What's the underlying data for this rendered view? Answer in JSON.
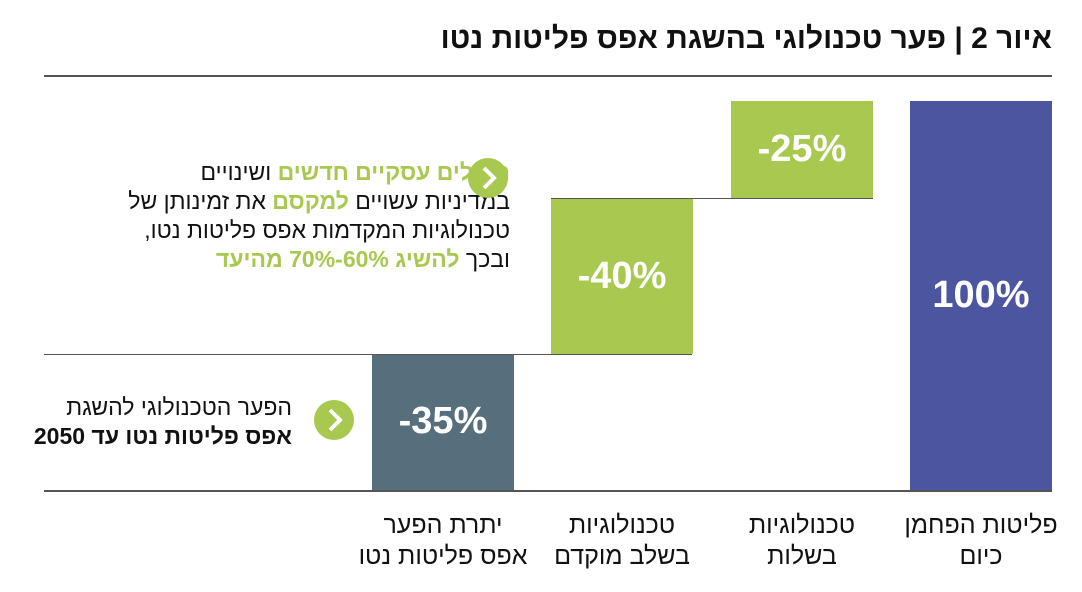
{
  "title": "איור 2 | פער טכנולוגי בהשגת אפס פליטות נטו",
  "chart_data": {
    "type": "waterfall",
    "title": "איור 2 | פער טכנולוגי בהשגת אפס פליטות נטו",
    "categories": [
      "פליטות הפחמן כיום",
      "טכנולוגיות בשלות",
      "טכנולוגיות בשלב מוקדם",
      "יתרת הפער אפס פליטות נטו"
    ],
    "category_lines": [
      [
        "פליטות הפחמן",
        "כיום"
      ],
      [
        "טכנולוגיות",
        "בשלות"
      ],
      [
        "טכנולוגיות",
        "בשלב מוקדם"
      ],
      [
        "יתרת הפער",
        "אפס פליטות נטו"
      ]
    ],
    "values": [
      100,
      -25,
      -40,
      -35
    ],
    "labels": [
      "100%",
      "-25%",
      "-40%",
      "-35%"
    ],
    "colors": [
      "#4b55a0",
      "#a8c84f",
      "#a8c84f",
      "#576e7c"
    ],
    "ylim": [
      0,
      100
    ]
  },
  "callouts": [
    {
      "segments": [
        {
          "text": "מודלים עסקיים חדשים",
          "style": "green"
        },
        {
          "text": " ושינויים במדיניות עשויים ",
          "style": ""
        },
        {
          "text": "למקסם",
          "style": "green"
        },
        {
          "text": " את זמינותן של טכנולוגיות המקדמות אפס פליטות נטו, ובכך ",
          "style": ""
        },
        {
          "text": "להשיג 60%-70% מהיעד",
          "style": "green"
        }
      ]
    },
    {
      "segments": [
        {
          "text": "הפער הטכנולוגי להשגת ",
          "style": ""
        },
        {
          "text": "אפס פליטות נטו עד 2050",
          "style": "bold"
        }
      ]
    }
  ],
  "icons": [
    "chevron-right-icon"
  ]
}
